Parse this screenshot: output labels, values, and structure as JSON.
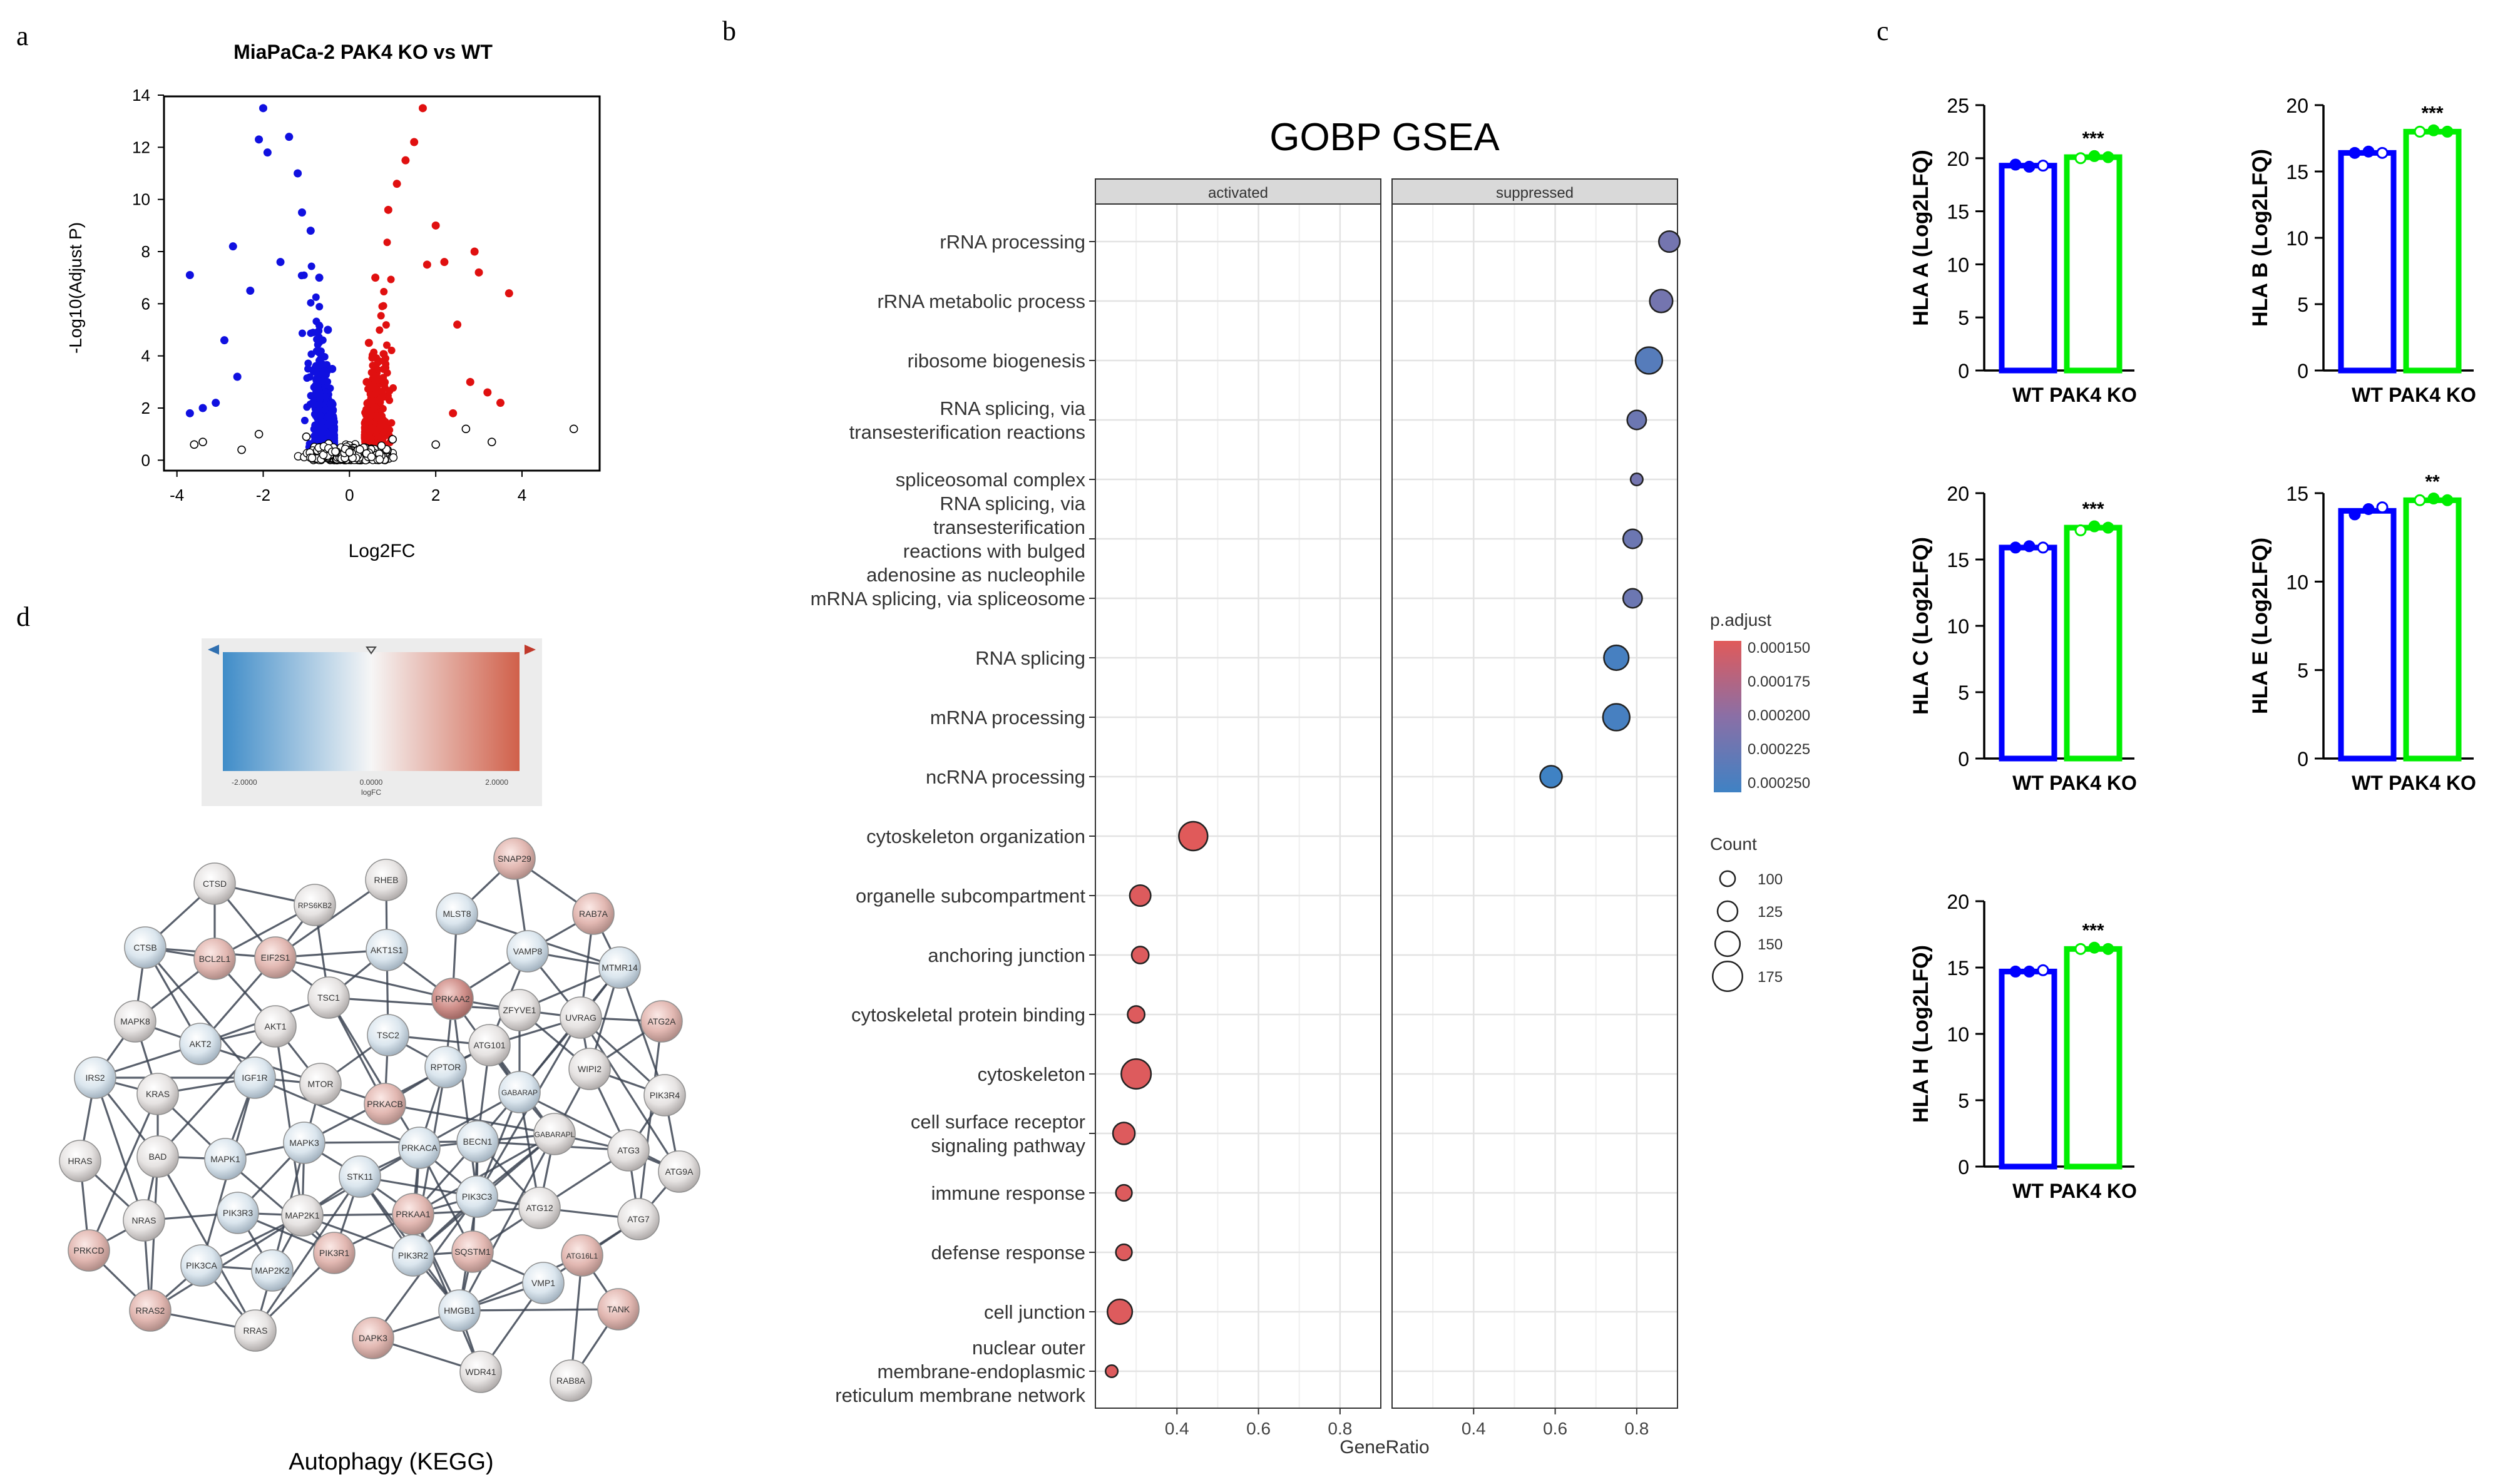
{
  "panels": {
    "a": "a",
    "b": "b",
    "c": "c",
    "d": "d"
  },
  "volcano": {
    "title": "MiaPaCa-2 PAK4 KO vs WT",
    "xlabel": "Log2FC",
    "ylabel": "-Log10(Adjust P)",
    "xticks": [
      "-4",
      "-2",
      "0",
      "2",
      "4"
    ],
    "yticks": [
      "0",
      "2",
      "4",
      "6",
      "8",
      "10",
      "12",
      "14"
    ],
    "colors": {
      "down": "#1010e0",
      "up": "#e01010",
      "ns": "#000000"
    }
  },
  "gsea": {
    "title": "GOBP GSEA",
    "facets": [
      "activated",
      "suppressed"
    ],
    "xlabel": "GeneRatio",
    "xticks": [
      "0.4",
      "0.6",
      "0.8"
    ],
    "legend_padj_title": "p.adjust",
    "legend_padj_labels": [
      "0.000150",
      "0.000175",
      "0.000200",
      "0.000225",
      "0.000250"
    ],
    "legend_count_title": "Count",
    "legend_count_labels": [
      "100",
      "125",
      "150",
      "175"
    ],
    "terms": [
      {
        "lines": [
          "rRNA processing"
        ]
      },
      {
        "lines": [
          "rRNA metabolic process"
        ]
      },
      {
        "lines": [
          "ribosome biogenesis"
        ]
      },
      {
        "lines": [
          "RNA splicing, via",
          "transesterification reactions"
        ]
      },
      {
        "lines": [
          "spliceosomal complex"
        ]
      },
      {
        "lines": [
          "RNA splicing, via",
          "transesterification",
          "reactions with bulged",
          "adenosine as nucleophile"
        ]
      },
      {
        "lines": [
          "mRNA splicing, via spliceosome"
        ]
      },
      {
        "lines": [
          "RNA splicing"
        ]
      },
      {
        "lines": [
          "mRNA processing"
        ]
      },
      {
        "lines": [
          "ncRNA processing"
        ]
      },
      {
        "lines": [
          "cytoskeleton organization"
        ]
      },
      {
        "lines": [
          "organelle subcompartment"
        ]
      },
      {
        "lines": [
          "anchoring junction"
        ]
      },
      {
        "lines": [
          "cytoskeletal protein binding"
        ]
      },
      {
        "lines": [
          "cytoskeleton"
        ]
      },
      {
        "lines": [
          "cell surface receptor",
          "signaling pathway"
        ]
      },
      {
        "lines": [
          "immune response"
        ]
      },
      {
        "lines": [
          "defense response"
        ]
      },
      {
        "lines": [
          "cell junction"
        ]
      },
      {
        "lines": [
          "nuclear outer",
          "membrane-endoplasmic",
          "reticulum membrane network"
        ]
      }
    ]
  },
  "hla_axis": {
    "wt_label": "WT",
    "ko_label": "PAK4 KO",
    "wt_color": "#0000ff",
    "ko_color": "#00ee00"
  },
  "hla": [
    {
      "ylabel": "HLA A (Log2LFQ)",
      "yticks": [
        "0",
        "5",
        "10",
        "15",
        "20",
        "25"
      ],
      "sig": "***"
    },
    {
      "ylabel": "HLA B (Log2LFQ)",
      "yticks": [
        "0",
        "5",
        "10",
        "15",
        "20"
      ],
      "sig": "***"
    },
    {
      "ylabel": "HLA C (Log2LFQ)",
      "yticks": [
        "0",
        "5",
        "10",
        "15",
        "20"
      ],
      "sig": "***"
    },
    {
      "ylabel": "HLA E (Log2LFQ)",
      "yticks": [
        "0",
        "5",
        "10",
        "15"
      ],
      "sig": "**"
    },
    {
      "ylabel": "HLA H (Log2LFQ)",
      "yticks": [
        "0",
        "5",
        "10",
        "15",
        "20"
      ],
      "sig": "***"
    }
  ],
  "network": {
    "caption": "Autophagy (KEGG)",
    "legend_min": "-2.0000",
    "legend_mid": "0.0000",
    "legend_max": "2.0000",
    "legend_label": "logFC",
    "nodes": [
      "CTSD",
      "RHEB",
      "SNAP29",
      "RPS6KB2",
      "MLST8",
      "RAB7A",
      "CTSB",
      "BCL2L1",
      "EIF2S1",
      "AKT1S1",
      "VAMP8",
      "MTMR14",
      "TSC1",
      "PRKAA2",
      "ZFYVE1",
      "MAPK8",
      "AKT1",
      "UVRAG",
      "ATG2A",
      "AKT2",
      "TSC2",
      "ATG101",
      "WIPI2",
      "IRS2",
      "IGF1R",
      "MTOR",
      "RPTOR",
      "GABARAP",
      "PIK3R4",
      "KRAS",
      "PRKACB",
      "HRAS",
      "BAD",
      "MAPK1",
      "MAPK3",
      "BECN1",
      "GABARAPL",
      "ATG3",
      "PRKACA",
      "STK11",
      "ATG9A",
      "NRAS",
      "PIK3R3",
      "MAP2K1",
      "PRKAA1",
      "PIK3C3",
      "ATG12",
      "ATG7",
      "PRKCD",
      "PIK3CA",
      "MAP2K2",
      "PIK3R1",
      "PIK3R2",
      "SQSTM1",
      "ATG16L1",
      "VMP1",
      "TANK",
      "RRAS2",
      "RRAS",
      "HMGB1",
      "DAPK3",
      "WDR41",
      "RAB8A"
    ]
  },
  "chart_data": [
    {
      "type": "scatter",
      "title": "MiaPaCa-2 PAK4 KO vs WT",
      "xlabel": "Log2FC",
      "ylabel": "-Log10(Adjust P)",
      "xlim": [
        -4.3,
        5.8
      ],
      "ylim": [
        -0.4,
        14
      ],
      "series": [
        {
          "name": "down",
          "color": "#1010e0",
          "points": [
            [
              -2.0,
              13.5
            ],
            [
              -2.1,
              12.3
            ],
            [
              -1.9,
              11.8
            ],
            [
              -1.4,
              12.4
            ],
            [
              -1.2,
              11.0
            ],
            [
              -2.7,
              8.2
            ],
            [
              -2.3,
              6.5
            ],
            [
              -1.6,
              7.6
            ],
            [
              -2.9,
              4.6
            ],
            [
              -2.6,
              3.2
            ],
            [
              -3.1,
              2.2
            ],
            [
              -3.7,
              7.1
            ],
            [
              -3.4,
              2.0
            ],
            [
              -3.7,
              1.8
            ],
            [
              -1.1,
              9.5
            ],
            [
              -0.9,
              8.8
            ],
            [
              -0.7,
              7.0
            ],
            [
              -0.5,
              5.0
            ],
            [
              -0.4,
              3.5
            ]
          ]
        },
        {
          "name": "up",
          "color": "#e01010",
          "points": [
            [
              1.7,
              13.5
            ],
            [
              1.5,
              12.2
            ],
            [
              1.3,
              11.5
            ],
            [
              1.1,
              10.6
            ],
            [
              0.9,
              9.6
            ],
            [
              2.0,
              9.0
            ],
            [
              2.2,
              7.6
            ],
            [
              1.8,
              7.5
            ],
            [
              2.9,
              8.0
            ],
            [
              3.0,
              7.2
            ],
            [
              3.7,
              6.4
            ],
            [
              2.5,
              5.2
            ],
            [
              2.8,
              3.0
            ],
            [
              3.2,
              2.6
            ],
            [
              3.5,
              2.2
            ],
            [
              2.4,
              1.8
            ],
            [
              0.6,
              7.0
            ],
            [
              0.45,
              4.5
            ],
            [
              0.4,
              3.0
            ]
          ]
        },
        {
          "name": "not significant",
          "color": "#000000",
          "points": [
            [
              -3.4,
              0.7
            ],
            [
              -2.5,
              0.4
            ],
            [
              -2.1,
              1.0
            ],
            [
              -1.0,
              0.9
            ],
            [
              0,
              0.3
            ],
            [
              1.0,
              0.8
            ],
            [
              2.0,
              0.6
            ],
            [
              2.7,
              1.2
            ],
            [
              3.3,
              0.7
            ],
            [
              5.2,
              1.2
            ],
            [
              -3.6,
              0.6
            ]
          ]
        }
      ]
    },
    {
      "type": "scatter",
      "title": "GOBP GSEA",
      "xlabel": "GeneRatio",
      "facets": [
        "activated",
        "suppressed"
      ],
      "xlim": [
        0.2,
        0.9
      ],
      "size_var": "Count",
      "color_var": "p.adjust",
      "points": [
        {
          "term": "rRNA processing",
          "facet": "suppressed",
          "x": 0.88,
          "count": 130,
          "padj": 0.000215
        },
        {
          "term": "rRNA metabolic process",
          "facet": "suppressed",
          "x": 0.86,
          "count": 140,
          "padj": 0.000215
        },
        {
          "term": "ribosome biogenesis",
          "facet": "suppressed",
          "x": 0.83,
          "count": 160,
          "padj": 0.000235
        },
        {
          "term": "RNA splicing, via transesterification reactions",
          "facet": "suppressed",
          "x": 0.8,
          "count": 120,
          "padj": 0.00022
        },
        {
          "term": "spliceosomal complex",
          "facet": "suppressed",
          "x": 0.8,
          "count": 85,
          "padj": 0.000215
        },
        {
          "term": "RNA splicing, via transesterification reactions with bulged adenosine as nucleophile",
          "facet": "suppressed",
          "x": 0.79,
          "count": 120,
          "padj": 0.00022
        },
        {
          "term": "mRNA splicing, via spliceosome",
          "facet": "suppressed",
          "x": 0.79,
          "count": 120,
          "padj": 0.00022
        },
        {
          "term": "RNA splicing",
          "facet": "suppressed",
          "x": 0.75,
          "count": 150,
          "padj": 0.000245
        },
        {
          "term": "mRNA processing",
          "facet": "suppressed",
          "x": 0.75,
          "count": 160,
          "padj": 0.000245
        },
        {
          "term": "ncRNA processing",
          "facet": "suppressed",
          "x": 0.59,
          "count": 135,
          "padj": 0.00025
        },
        {
          "term": "cytoskeleton organization",
          "facet": "activated",
          "x": 0.44,
          "count": 170,
          "padj": 0.00015
        },
        {
          "term": "organelle subcompartment",
          "facet": "activated",
          "x": 0.31,
          "count": 130,
          "padj": 0.000152
        },
        {
          "term": "anchoring junction",
          "facet": "activated",
          "x": 0.31,
          "count": 110,
          "padj": 0.000152
        },
        {
          "term": "cytoskeletal protein binding",
          "facet": "activated",
          "x": 0.3,
          "count": 110,
          "padj": 0.000152
        },
        {
          "term": "cytoskeleton",
          "facet": "activated",
          "x": 0.3,
          "count": 175,
          "padj": 0.000152
        },
        {
          "term": "cell surface receptor signaling pathway",
          "facet": "activated",
          "x": 0.27,
          "count": 135,
          "padj": 0.000152
        },
        {
          "term": "immune response",
          "facet": "activated",
          "x": 0.27,
          "count": 105,
          "padj": 0.000152
        },
        {
          "term": "defense response",
          "facet": "activated",
          "x": 0.27,
          "count": 105,
          "padj": 0.000152
        },
        {
          "term": "cell junction",
          "facet": "activated",
          "x": 0.26,
          "count": 150,
          "padj": 0.000152
        },
        {
          "term": "nuclear outer membrane-endoplasmic reticulum membrane network",
          "facet": "activated",
          "x": 0.24,
          "count": 85,
          "padj": 0.000152
        }
      ]
    },
    {
      "type": "bar",
      "categories": [
        "WT",
        "PAK4 KO"
      ],
      "charts": [
        {
          "title": "HLA A (Log2LFQ)",
          "ylim": [
            0,
            25
          ],
          "wt": 19.3,
          "ko": 20.1,
          "wt_points": [
            19.4,
            19.2,
            19.3
          ],
          "ko_points": [
            20.0,
            20.2,
            20.1
          ],
          "sig": "***"
        },
        {
          "title": "HLA B (Log2LFQ)",
          "ylim": [
            0,
            20
          ],
          "wt": 16.4,
          "ko": 18.0,
          "wt_points": [
            16.4,
            16.5,
            16.4
          ],
          "ko_points": [
            18.0,
            18.1,
            18.0
          ],
          "sig": "***"
        },
        {
          "title": "HLA C (Log2LFQ)",
          "ylim": [
            0,
            20
          ],
          "wt": 15.9,
          "ko": 17.4,
          "wt_points": [
            15.9,
            16.0,
            15.9
          ],
          "ko_points": [
            17.2,
            17.5,
            17.4
          ],
          "sig": "***"
        },
        {
          "title": "HLA E (Log2LFQ)",
          "ylim": [
            0,
            15
          ],
          "wt": 14.0,
          "ko": 14.6,
          "wt_points": [
            13.8,
            14.1,
            14.2
          ],
          "ko_points": [
            14.6,
            14.7,
            14.6
          ],
          "sig": "**"
        },
        {
          "title": "HLA H (Log2LFQ)",
          "ylim": [
            0,
            20
          ],
          "wt": 14.7,
          "ko": 16.4,
          "wt_points": [
            14.7,
            14.7,
            14.8
          ],
          "ko_points": [
            16.4,
            16.5,
            16.4
          ],
          "sig": "***"
        }
      ]
    }
  ]
}
